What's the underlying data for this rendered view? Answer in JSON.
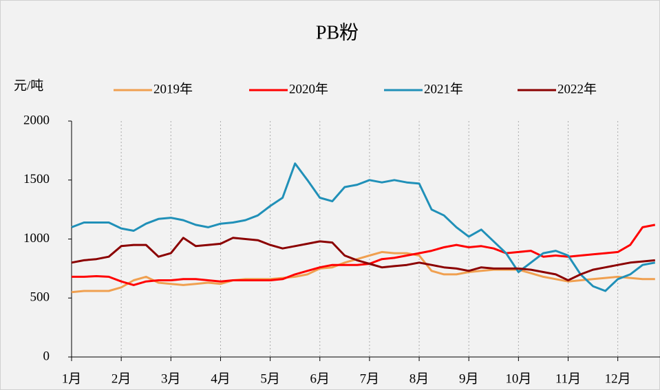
{
  "chart_data": {
    "type": "line",
    "title": "PB粉",
    "y_label": "元/吨",
    "x": [
      1,
      1.25,
      1.5,
      1.75,
      2,
      2.25,
      2.5,
      2.75,
      3,
      3.25,
      3.5,
      3.75,
      4,
      4.25,
      4.5,
      4.75,
      5,
      5.25,
      5.5,
      5.75,
      6,
      6.25,
      6.5,
      6.75,
      7,
      7.25,
      7.5,
      7.75,
      8,
      8.25,
      8.5,
      8.75,
      9,
      9.25,
      9.5,
      9.75,
      10,
      10.25,
      10.5,
      10.75,
      11,
      11.25,
      11.5,
      11.75,
      12,
      12.25,
      12.5,
      12.75
    ],
    "xlim": [
      1,
      12.85
    ],
    "xticks": [
      {
        "value": 1,
        "label": "1月"
      },
      {
        "value": 2,
        "label": "2月"
      },
      {
        "value": 3,
        "label": "3月"
      },
      {
        "value": 4,
        "label": "4月"
      },
      {
        "value": 5,
        "label": "5月"
      },
      {
        "value": 6,
        "label": "6月"
      },
      {
        "value": 7,
        "label": "7月"
      },
      {
        "value": 8,
        "label": "8月"
      },
      {
        "value": 9,
        "label": "9月"
      },
      {
        "value": 10,
        "label": "10月"
      },
      {
        "value": 11,
        "label": "11月"
      },
      {
        "value": 12,
        "label": "12月"
      }
    ],
    "ylim": [
      0,
      2000
    ],
    "yticks": [
      0,
      500,
      1000,
      1500,
      2000
    ],
    "grid": true,
    "legend": "top",
    "series": [
      {
        "name": "2019年",
        "color": "#f0a050",
        "values": [
          550,
          560,
          560,
          560,
          590,
          650,
          680,
          630,
          620,
          610,
          620,
          630,
          620,
          650,
          660,
          660,
          660,
          670,
          680,
          700,
          750,
          760,
          800,
          830,
          860,
          890,
          880,
          880,
          860,
          730,
          700,
          700,
          720,
          730,
          740,
          740,
          740,
          710,
          680,
          660,
          640,
          650,
          660,
          670,
          680,
          670,
          660,
          660
        ]
      },
      {
        "name": "2020年",
        "color": "#ff0000",
        "values": [
          680,
          680,
          685,
          680,
          640,
          610,
          640,
          650,
          650,
          660,
          660,
          650,
          640,
          650,
          650,
          650,
          650,
          660,
          700,
          730,
          760,
          780,
          780,
          780,
          790,
          830,
          840,
          860,
          880,
          900,
          930,
          950,
          930,
          940,
          920,
          880,
          890,
          900,
          850,
          860,
          850,
          860,
          870,
          880,
          890,
          950,
          1100,
          1120
        ]
      },
      {
        "name": "2021年",
        "color": "#2090b8",
        "values": [
          1100,
          1140,
          1140,
          1140,
          1090,
          1070,
          1130,
          1170,
          1180,
          1160,
          1120,
          1100,
          1130,
          1140,
          1160,
          1200,
          1280,
          1350,
          1640,
          1500,
          1350,
          1320,
          1440,
          1460,
          1500,
          1480,
          1500,
          1480,
          1470,
          1250,
          1200,
          1100,
          1020,
          1080,
          980,
          880,
          720,
          800,
          880,
          900,
          860,
          700,
          600,
          560,
          660,
          700,
          780,
          800
        ]
      },
      {
        "name": "2022年",
        "color": "#8b0000",
        "values": [
          800,
          820,
          830,
          850,
          940,
          950,
          950,
          850,
          880,
          1010,
          940,
          950,
          960,
          1010,
          1000,
          990,
          950,
          920,
          940,
          960,
          980,
          970,
          860,
          820,
          790,
          760,
          770,
          780,
          800,
          780,
          760,
          750,
          730,
          760,
          750,
          750,
          750,
          740,
          720,
          700,
          650,
          700,
          740,
          760,
          780,
          800,
          810,
          820
        ]
      }
    ]
  }
}
